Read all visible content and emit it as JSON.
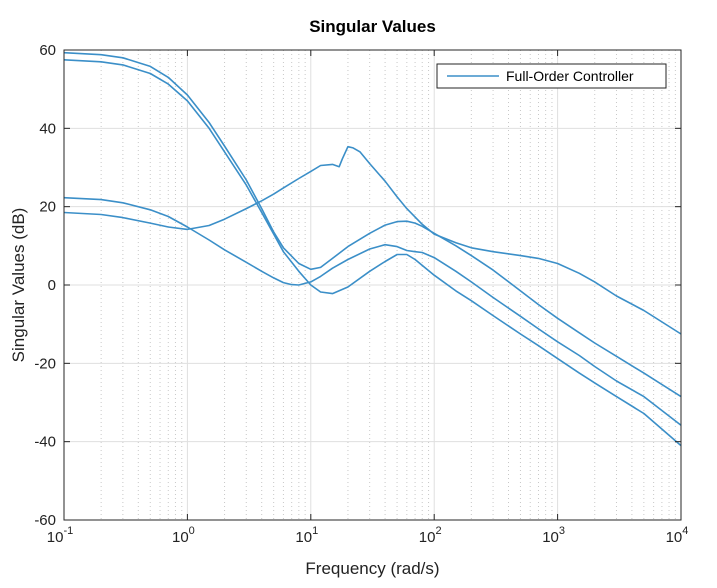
{
  "chart_data": {
    "type": "line",
    "title": "Singular Values",
    "xlabel": "Frequency (rad/s)",
    "ylabel": "Singular Values (dB)",
    "xscale": "log",
    "xlim": [
      0.1,
      10000
    ],
    "ylim": [
      -60,
      60
    ],
    "x_ticks": [
      {
        "value": 0.1,
        "base": "10",
        "exp": "-1"
      },
      {
        "value": 1,
        "base": "10",
        "exp": "0"
      },
      {
        "value": 10,
        "base": "10",
        "exp": "1"
      },
      {
        "value": 100,
        "base": "10",
        "exp": "2"
      },
      {
        "value": 1000,
        "base": "10",
        "exp": "3"
      },
      {
        "value": 10000,
        "base": "10",
        "exp": "4"
      }
    ],
    "y_ticks": [
      "60",
      "40",
      "20",
      "0",
      "-20",
      "-40",
      "-60"
    ],
    "y_tick_values": [
      60,
      40,
      20,
      0,
      -20,
      -40,
      -60
    ],
    "grid": true,
    "minor_grid": true,
    "legend": {
      "entries": [
        "Full-Order Controller"
      ],
      "location": "top-right"
    },
    "line_color": "#3b8fc8",
    "series": [
      {
        "x": [
          0.1,
          0.2,
          0.3,
          0.5,
          0.7,
          1,
          1.5,
          2,
          3,
          4,
          5,
          6,
          8,
          10,
          12,
          15,
          20,
          30,
          40,
          50,
          60,
          70,
          80,
          100,
          150,
          200,
          300,
          500,
          700,
          1000,
          1500,
          2000,
          3000,
          5000,
          10000
        ],
        "y": [
          59.3,
          58.8,
          58.0,
          55.8,
          53.0,
          48.5,
          41.5,
          35.5,
          26.8,
          19.5,
          13.5,
          9.5,
          5.5,
          4.0,
          4.5,
          6.8,
          9.8,
          13.2,
          15.3,
          16.2,
          16.3,
          15.8,
          15.0,
          13.2,
          10.0,
          7.5,
          3.8,
          -1.5,
          -5.0,
          -8.5,
          -12.2,
          -14.8,
          -18.2,
          -22.5,
          -28.5
        ]
      },
      {
        "x": [
          0.1,
          0.2,
          0.3,
          0.5,
          0.7,
          1,
          1.5,
          2,
          3,
          4,
          5,
          6,
          8,
          10,
          12,
          15,
          20,
          30,
          40,
          50,
          60,
          70,
          80,
          100,
          150,
          200,
          300,
          500,
          700,
          1000,
          1500,
          2000,
          3000,
          5000,
          10000
        ],
        "y": [
          57.5,
          57.0,
          56.2,
          54.0,
          51.3,
          47.0,
          40.0,
          34.0,
          25.5,
          18.5,
          13.0,
          8.5,
          3.5,
          0.0,
          -1.8,
          -2.2,
          -0.5,
          3.5,
          6.0,
          7.8,
          7.8,
          6.5,
          5.0,
          2.5,
          -1.5,
          -4.0,
          -7.8,
          -12.5,
          -15.5,
          -18.8,
          -22.5,
          -25.0,
          -28.5,
          -32.8,
          -41.0
        ]
      },
      {
        "x": [
          0.1,
          0.2,
          0.3,
          0.5,
          0.7,
          1,
          1.5,
          2,
          3,
          4,
          5,
          6,
          8,
          10,
          12,
          15,
          17,
          18,
          20,
          22,
          25,
          30,
          40,
          50,
          60,
          80,
          100,
          150,
          200,
          300,
          500,
          700,
          1000,
          1500,
          2000,
          3000,
          5000,
          10000
        ],
        "y": [
          18.5,
          18.0,
          17.2,
          15.8,
          14.8,
          14.2,
          15.2,
          16.8,
          19.5,
          21.5,
          23.2,
          24.8,
          27.2,
          29.0,
          30.5,
          30.8,
          30.2,
          32.2,
          35.3,
          35.0,
          34.0,
          31.0,
          26.5,
          22.5,
          19.5,
          15.5,
          13.0,
          10.8,
          9.5,
          8.5,
          7.5,
          6.8,
          5.5,
          3.0,
          0.8,
          -2.8,
          -6.5,
          -12.5
        ]
      },
      {
        "x": [
          0.1,
          0.2,
          0.3,
          0.5,
          0.7,
          1,
          1.5,
          2,
          3,
          4,
          5,
          6,
          7,
          8,
          10,
          12,
          15,
          20,
          30,
          40,
          50,
          60,
          70,
          80,
          100,
          150,
          200,
          300,
          500,
          700,
          1000,
          1500,
          2000,
          3000,
          5000,
          10000
        ],
        "y": [
          22.3,
          21.8,
          21.0,
          19.2,
          17.5,
          14.8,
          11.5,
          9.0,
          5.8,
          3.5,
          1.8,
          0.6,
          0.1,
          0.0,
          0.8,
          2.2,
          4.3,
          6.5,
          9.2,
          10.3,
          9.8,
          8.8,
          8.5,
          8.3,
          7.0,
          3.5,
          0.8,
          -3.2,
          -8.0,
          -11.2,
          -14.5,
          -18.0,
          -20.8,
          -24.5,
          -28.5,
          -35.8
        ]
      }
    ]
  }
}
